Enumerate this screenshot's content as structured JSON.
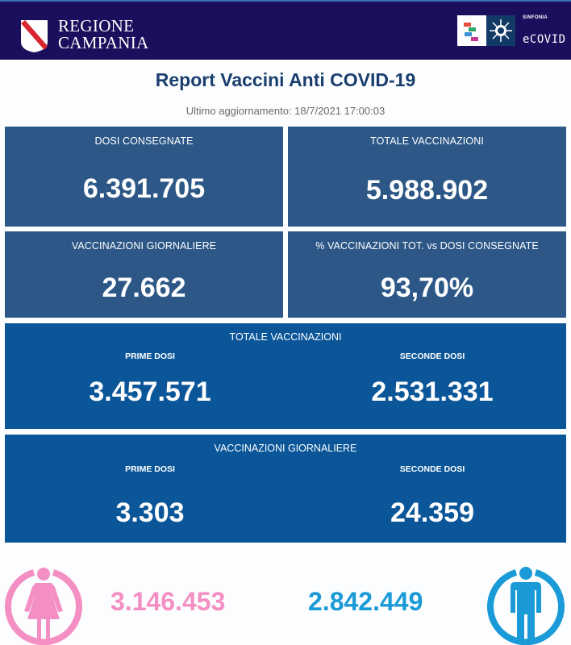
{
  "header": {
    "region_line1": "REGIONE",
    "region_line2": "CAMPANIA",
    "product_small": "SINFONIA",
    "product_name": "eCOVID"
  },
  "report": {
    "title": "Report Vaccini Anti COVID-19",
    "updated": "Ultimo aggiornamento: 18/7/2021  17:00:03"
  },
  "kpis": [
    {
      "label": "DOSI  CONSEGNATE",
      "value": "6.391.705"
    },
    {
      "label": "TOTALE VACCINAZIONI",
      "value": "5.988.902"
    },
    {
      "label": "VACCINAZIONI GIORNALIERE",
      "value": "27.662"
    },
    {
      "label": "% VACCINAZIONI TOT. vs DOSI CONSEGNATE",
      "value": "93,70%"
    }
  ],
  "totale": {
    "label": "TOTALE VACCINAZIONI",
    "prime_label": "PRIME DOSI",
    "prime_value": "3.457.571",
    "seconde_label": "SECONDE DOSI",
    "seconde_value": "2.531.331"
  },
  "giornaliere": {
    "label": "VACCINAZIONI GIORNALIERE",
    "prime_label": "PRIME DOSI",
    "prime_value": "3.303",
    "seconde_label": "SECONDE DOSI",
    "seconde_value": "24.359"
  },
  "gender": {
    "female_value": "3.146.453",
    "male_value": "2.842.449",
    "female_color": "#f48fc4",
    "male_color": "#1a9ad6"
  },
  "colors": {
    "header_bg": "#1a0f5c",
    "kpi_box": "#2c5787",
    "wide_box": "#0b5699",
    "title": "#1a3e6e"
  }
}
